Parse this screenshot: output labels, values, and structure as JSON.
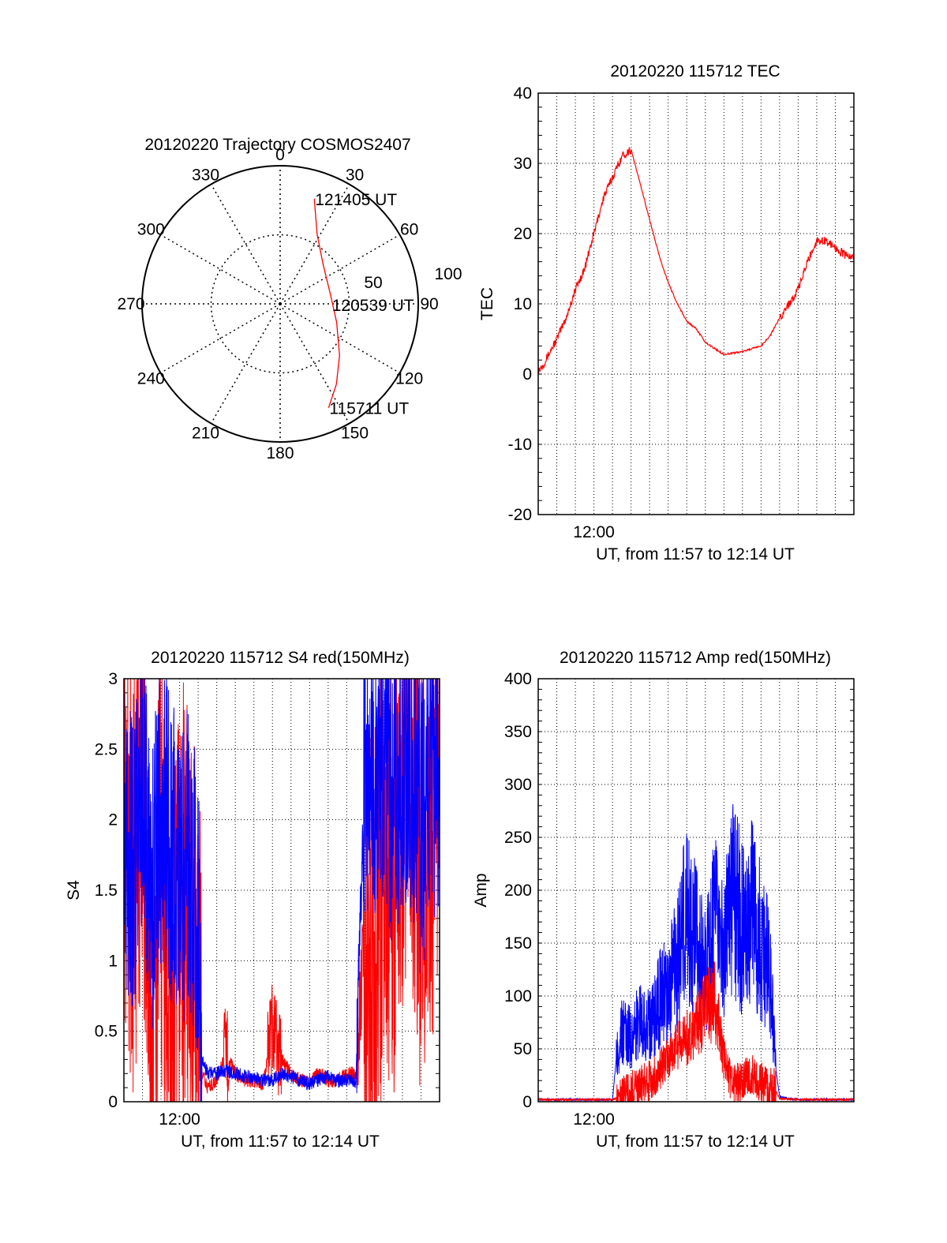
{
  "chart_data": [
    {
      "type": "polar",
      "title": "20120220 Trajectory COSMOS2407",
      "azimuth_labels": [
        "0",
        "30",
        "60",
        "90",
        "120",
        "150",
        "180",
        "210",
        "240",
        "270",
        "300",
        "330"
      ],
      "radial_labels": [
        "50",
        "100"
      ],
      "grid": true,
      "series": [
        {
          "color": "#ff0000",
          "points": [
            {
              "az": 18,
              "r": 80
            },
            {
              "az": 28,
              "r": 57
            },
            {
              "az": 48,
              "r": 42
            },
            {
              "az": 78,
              "r": 37
            },
            {
              "az": 108,
              "r": 43
            },
            {
              "az": 131,
              "r": 57
            },
            {
              "az": 145,
              "r": 71
            },
            {
              "az": 155,
              "r": 83
            }
          ]
        }
      ],
      "annotations": [
        {
          "text": "121405 UT",
          "az": 18,
          "r": 80
        },
        {
          "text": "120539 UT",
          "az": 91,
          "r": 37
        },
        {
          "text": "115711 UT",
          "az": 155,
          "r": 83
        }
      ]
    },
    {
      "type": "line",
      "title": "20120220 115712 TEC",
      "xlabel": "UT, from 11:57 to 12:14 UT",
      "ylabel": "TEC",
      "x_tick_labels": [
        "12:00"
      ],
      "xlim": [
        0,
        17
      ],
      "ylim": [
        -20,
        40
      ],
      "y_ticks": [
        -20,
        -10,
        0,
        10,
        20,
        30,
        40
      ],
      "grid": true,
      "series": [
        {
          "color": "#ff0000",
          "x": [
            0,
            0.3,
            0.6,
            1,
            1.5,
            2,
            2.5,
            3,
            3.5,
            4,
            4.5,
            5,
            5.5,
            6,
            6.5,
            7,
            7.5,
            8,
            8.5,
            9,
            10,
            11,
            12,
            12.5,
            13,
            13.5,
            14,
            14.5,
            15,
            15.5,
            16,
            16.5,
            17
          ],
          "y": [
            0.5,
            1.5,
            3,
            5,
            8,
            12,
            15,
            20,
            25,
            28,
            31,
            32,
            27,
            22,
            17,
            13,
            10,
            7.5,
            6.5,
            4.5,
            2.8,
            3.2,
            4,
            5.5,
            8,
            10,
            12,
            16,
            19,
            19,
            18,
            17,
            16.5
          ]
        }
      ]
    },
    {
      "type": "line",
      "title": "20120220 115712 S4 red(150MHz)",
      "xlabel": "UT, from 11:57 to 12:14 UT",
      "ylabel": "S4",
      "x_tick_labels": [
        "12:00"
      ],
      "xlim": [
        0,
        17
      ],
      "ylim": [
        0,
        3
      ],
      "y_ticks": [
        0,
        0.5,
        1,
        1.5,
        2,
        2.5,
        3
      ],
      "grid": true,
      "series": [
        {
          "color": "#ff0000",
          "x": [
            0,
            0.5,
            1,
            1.5,
            2,
            2.5,
            3,
            3.5,
            4,
            4.2,
            4.5,
            5,
            5.5,
            6,
            6.5,
            7,
            7.5,
            8,
            8.5,
            9,
            9.5,
            10,
            10.5,
            11,
            11.5,
            12,
            12.5,
            13,
            13.5,
            14,
            14.5,
            15,
            15.5,
            16,
            16.5,
            17
          ],
          "y": [
            2.2,
            1.4,
            2.6,
            0.3,
            1.8,
            0.2,
            1.5,
            1.2,
            0.8,
            0.2,
            0.1,
            0.15,
            0.35,
            0.2,
            0.15,
            0.15,
            0.12,
            0.5,
            0.3,
            0.2,
            0.15,
            0.15,
            0.2,
            0.15,
            0.15,
            0.2,
            0.2,
            1.3,
            1.1,
            1.8,
            1.6,
            2.2,
            2.4,
            1.5,
            2.0,
            2.0
          ]
        },
        {
          "color": "#0000ff",
          "x": [
            0,
            0.5,
            1,
            1.5,
            2,
            2.5,
            3,
            3.5,
            4,
            4.2,
            4.5,
            5,
            5.5,
            6,
            6.5,
            7,
            7.5,
            8,
            8.5,
            9,
            9.5,
            10,
            10.5,
            11,
            11.5,
            12,
            12.5,
            13,
            13.5,
            14,
            14.5,
            15,
            15.5,
            16,
            16.5,
            17
          ],
          "y": [
            2.0,
            1.7,
            2.3,
            1.5,
            2.1,
            1.8,
            1.6,
            1.7,
            1.3,
            0.3,
            0.2,
            0.2,
            0.22,
            0.2,
            0.18,
            0.17,
            0.15,
            0.15,
            0.2,
            0.18,
            0.15,
            0.13,
            0.16,
            0.18,
            0.15,
            0.15,
            0.15,
            2.5,
            2.2,
            2.6,
            2.1,
            2.5,
            2.4,
            1.9,
            2.5,
            2.3
          ]
        }
      ]
    },
    {
      "type": "line",
      "title": "20120220 115712 Amp red(150MHz)",
      "xlabel": "UT, from 11:57 to 12:14 UT",
      "ylabel": "Amp",
      "x_tick_labels": [
        "12:00"
      ],
      "xlim": [
        0,
        17
      ],
      "ylim": [
        0,
        400
      ],
      "y_ticks": [
        0,
        50,
        100,
        150,
        200,
        250,
        300,
        350,
        400
      ],
      "grid": true,
      "series": [
        {
          "color": "#0000ff",
          "x": [
            0,
            1,
            2,
            3,
            4,
            4.2,
            4.5,
            5,
            5.5,
            6,
            6.5,
            7,
            7.5,
            8,
            8.5,
            9,
            9.5,
            10,
            10.5,
            11,
            11.5,
            12,
            12.5,
            12.8,
            13,
            13.5,
            14,
            15,
            16,
            17
          ],
          "y": [
            2,
            2,
            2,
            2,
            2,
            40,
            65,
            60,
            80,
            70,
            95,
            110,
            130,
            180,
            150,
            120,
            170,
            140,
            200,
            160,
            180,
            150,
            120,
            30,
            5,
            3,
            2,
            2,
            2,
            2
          ]
        },
        {
          "color": "#ff0000",
          "x": [
            0,
            1,
            2,
            3,
            4,
            4.5,
            5,
            5.5,
            6,
            6.5,
            7,
            7.5,
            8,
            8.5,
            9,
            9.5,
            10,
            10.5,
            11,
            11.5,
            12,
            12.5,
            12.8,
            13,
            14,
            15,
            16,
            17
          ],
          "y": [
            2,
            2,
            2,
            2,
            2,
            5,
            10,
            15,
            20,
            30,
            40,
            55,
            60,
            70,
            85,
            95,
            40,
            15,
            20,
            25,
            20,
            15,
            10,
            3,
            2,
            2,
            2,
            2
          ]
        }
      ]
    }
  ]
}
